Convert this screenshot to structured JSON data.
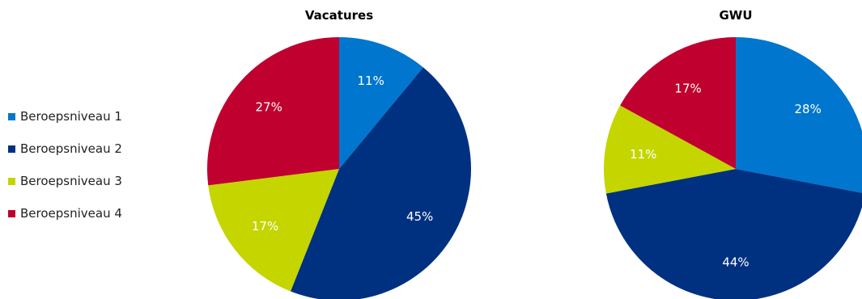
{
  "legend": {
    "placement": "left",
    "items": [
      {
        "label": "Beroepsniveau 1",
        "color": "#0076CE"
      },
      {
        "label": "Beroepsniveau 2",
        "color": "#003181"
      },
      {
        "label": "Beroepsniveau 3",
        "color": "#C4D500"
      },
      {
        "label": "Beroepsniveau 4",
        "color": "#C0002E"
      }
    ]
  },
  "chart_data": [
    {
      "type": "pie",
      "title": "Vacatures",
      "categories": [
        "Beroepsniveau 1",
        "Beroepsniveau 2",
        "Beroepsniveau 3",
        "Beroepsniveau 4"
      ],
      "values": [
        11,
        45,
        17,
        27
      ],
      "labels": [
        "11%",
        "45%",
        "17%",
        "27%"
      ],
      "colors": [
        "#0076CE",
        "#003181",
        "#C4D500",
        "#C0002E"
      ]
    },
    {
      "type": "pie",
      "title": "GWU",
      "categories": [
        "Beroepsniveau 1",
        "Beroepsniveau 2",
        "Beroepsniveau 3",
        "Beroepsniveau 4"
      ],
      "values": [
        28,
        44,
        11,
        17
      ],
      "labels": [
        "28%",
        "44%",
        "11%",
        "17%"
      ],
      "colors": [
        "#0076CE",
        "#003181",
        "#C4D500",
        "#C0002E"
      ]
    }
  ]
}
